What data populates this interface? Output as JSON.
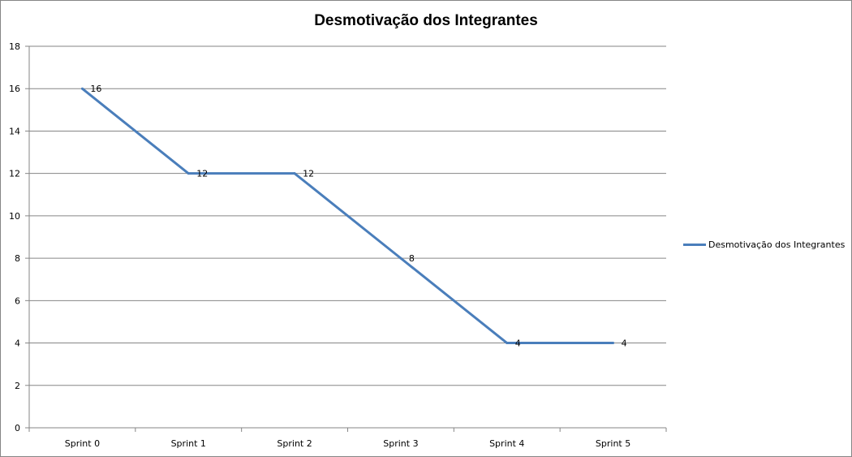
{
  "chart_data": {
    "type": "line",
    "title": "Desmotivação dos Integrantes",
    "categories": [
      "Sprint 0",
      "Sprint 1",
      "Sprint 2",
      "Sprint 3",
      "Sprint 4",
      "Sprint 5"
    ],
    "series": [
      {
        "name": "Desmotivação dos Integrantes",
        "values": [
          16,
          12,
          12,
          8,
          4,
          4
        ],
        "color": "#4a7ebb"
      }
    ],
    "data_labels": [
      "16",
      "12",
      "12",
      "8",
      "4",
      "4"
    ],
    "y_ticks": [
      "0",
      "2",
      "4",
      "6",
      "8",
      "10",
      "12",
      "14",
      "16",
      "18"
    ],
    "ylim": [
      0,
      18
    ],
    "grid": true,
    "legend_position": "right"
  }
}
